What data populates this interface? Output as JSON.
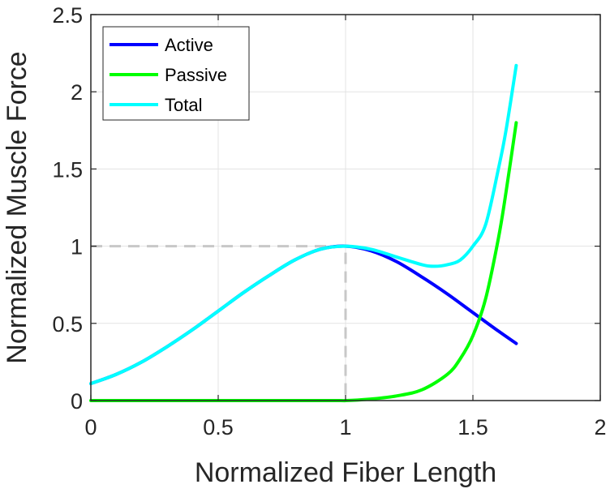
{
  "chart_data": {
    "type": "line",
    "title": "",
    "xlabel": "Normalized Fiber Length",
    "ylabel": "Normalized Muscle Force",
    "xlim": [
      0,
      2
    ],
    "ylim": [
      0,
      2.5
    ],
    "xticks": [
      0,
      0.5,
      1,
      1.5,
      2
    ],
    "xtick_labels": [
      "0",
      "0.5",
      "1",
      "1.5",
      "2"
    ],
    "yticks": [
      0,
      0.5,
      1,
      1.5,
      2,
      2.5
    ],
    "ytick_labels": [
      "0",
      "0.5",
      "1",
      "1.5",
      "2",
      "2.5"
    ],
    "grid": true,
    "legend_position": "top-left",
    "series": [
      {
        "name": "Active",
        "color": "#0000ff",
        "x": [
          0,
          0.1,
          0.2,
          0.3,
          0.4,
          0.5,
          0.6,
          0.7,
          0.8,
          0.9,
          1.0,
          1.1,
          1.2,
          1.3,
          1.4,
          1.5,
          1.6,
          1.67
        ],
        "y": [
          0.11,
          0.17,
          0.25,
          0.35,
          0.46,
          0.58,
          0.7,
          0.81,
          0.91,
          0.98,
          1.0,
          0.97,
          0.9,
          0.8,
          0.69,
          0.57,
          0.45,
          0.37
        ]
      },
      {
        "name": "Passive",
        "color": "#00ff00",
        "x": [
          0,
          0.9,
          1.0,
          1.1,
          1.2,
          1.3,
          1.4,
          1.45,
          1.5,
          1.55,
          1.6,
          1.63,
          1.67
        ],
        "y": [
          0,
          0,
          0,
          0.01,
          0.03,
          0.07,
          0.17,
          0.27,
          0.42,
          0.66,
          1.05,
          1.35,
          1.8
        ]
      },
      {
        "name": "Total",
        "color": "#00ffff",
        "x": [
          0,
          0.1,
          0.2,
          0.3,
          0.4,
          0.5,
          0.6,
          0.7,
          0.8,
          0.9,
          1.0,
          1.1,
          1.2,
          1.3,
          1.35,
          1.4,
          1.45,
          1.5,
          1.55,
          1.6,
          1.63,
          1.67
        ],
        "y": [
          0.11,
          0.17,
          0.25,
          0.35,
          0.46,
          0.58,
          0.7,
          0.81,
          0.91,
          0.98,
          1.0,
          0.98,
          0.93,
          0.88,
          0.87,
          0.88,
          0.91,
          1.0,
          1.14,
          1.5,
          1.75,
          2.17
        ]
      }
    ],
    "reference_lines": [
      {
        "color": "#c8c8c8",
        "style": "dashed",
        "x": [
          0,
          1,
          1
        ],
        "y": [
          1,
          1,
          0
        ]
      }
    ]
  }
}
